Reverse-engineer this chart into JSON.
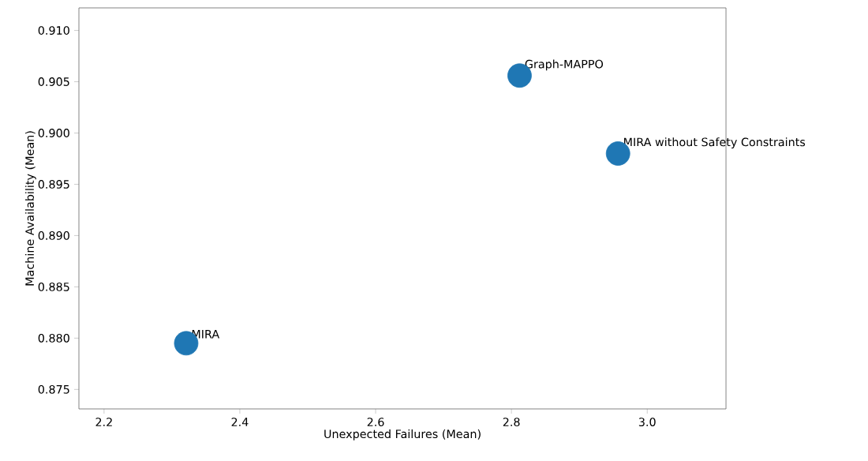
{
  "chart_data": {
    "type": "scatter",
    "xlabel": "Unexpected Failures (Mean)",
    "ylabel": "Machine Availability (Mean)",
    "x": [
      2.321,
      2.812,
      2.957
    ],
    "series": [
      {
        "color": "#1f77b4",
        "values": [
          0.8795,
          0.9056,
          0.898
        ]
      }
    ],
    "marker": "circle",
    "xlim": [
      2.163,
      3.116
    ],
    "xticks": [
      {
        "value": 2.2,
        "label": "2.2"
      },
      {
        "value": 2.4,
        "label": "2.4"
      },
      {
        "value": 2.6,
        "label": "2.6"
      },
      {
        "value": 2.8,
        "label": "2.8"
      },
      {
        "value": 3.0,
        "label": "3.0"
      }
    ],
    "ylim": [
      0.8731,
      0.9122
    ],
    "yticks": [
      {
        "value": 0.875,
        "label": "0.875"
      },
      {
        "value": 0.88,
        "label": "0.880"
      },
      {
        "value": 0.885,
        "label": "0.885"
      },
      {
        "value": 0.89,
        "label": "0.890"
      },
      {
        "value": 0.895,
        "label": "0.895"
      },
      {
        "value": 0.9,
        "label": "0.900"
      },
      {
        "value": 0.905,
        "label": "0.905"
      },
      {
        "value": 0.91,
        "label": "0.910"
      }
    ],
    "annotations": [
      {
        "text": "MIRA",
        "x": 2.321,
        "y": 0.8795
      },
      {
        "text": "Graph-MAPPO",
        "x": 2.812,
        "y": 0.9056
      },
      {
        "text": "MIRA without Safety Constraints",
        "x": 2.957,
        "y": 0.898
      }
    ]
  }
}
